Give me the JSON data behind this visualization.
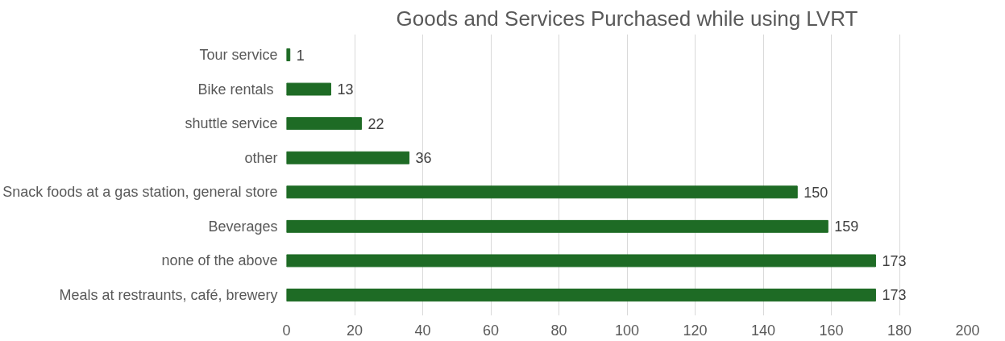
{
  "chart_data": {
    "type": "bar",
    "orientation": "horizontal",
    "title": "Goods and Services Purchased while using LVRT",
    "categories": [
      "Tour service",
      "Bike rentals ",
      "shuttle service",
      "other",
      "Snack foods at a gas station, general store",
      "Beverages",
      "none of the above",
      "Meals at restraunts, café, brewery"
    ],
    "values": [
      1,
      13,
      22,
      36,
      150,
      159,
      173,
      173
    ],
    "color": "#1e6b25",
    "xlim": [
      0,
      200
    ],
    "xticks": [
      0,
      20,
      40,
      60,
      80,
      100,
      120,
      140,
      160,
      180,
      200
    ],
    "grid": "x",
    "data_labels": true
  }
}
